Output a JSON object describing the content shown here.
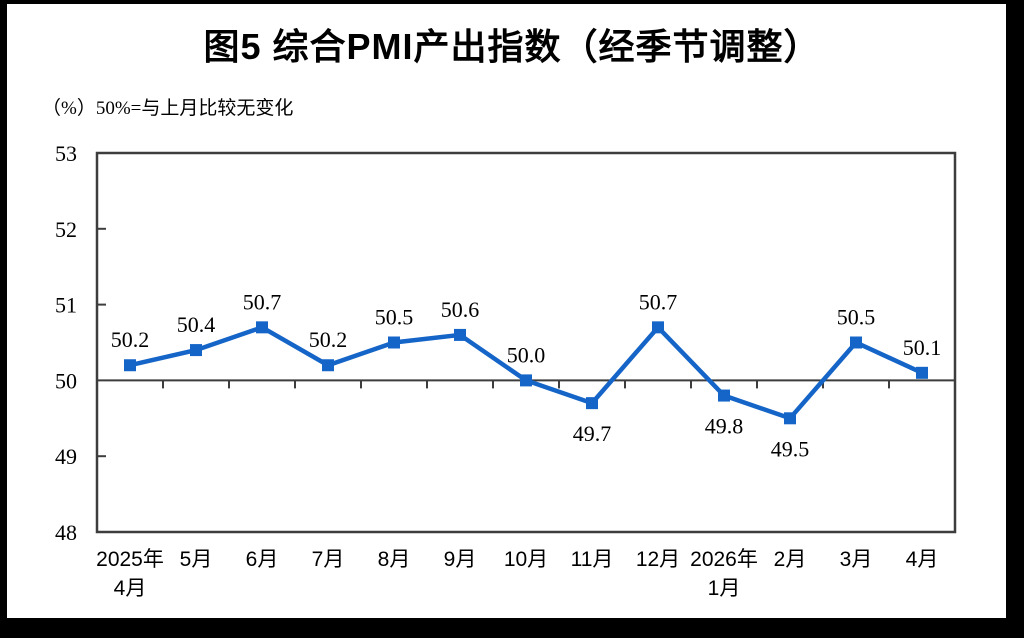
{
  "chart_data": {
    "type": "line",
    "title": "图5 综合PMI产出指数（经季节调整）",
    "unit_note": "（%）50%=与上月比较无变化",
    "categories": [
      [
        "2025年",
        "4月"
      ],
      [
        "5月"
      ],
      [
        "6月"
      ],
      [
        "7月"
      ],
      [
        "8月"
      ],
      [
        "9月"
      ],
      [
        "10月"
      ],
      [
        "11月"
      ],
      [
        "12月"
      ],
      [
        "2026年",
        "1月"
      ],
      [
        "2月"
      ],
      [
        "3月"
      ],
      [
        "4月"
      ]
    ],
    "series": [
      {
        "name": "综合PMI产出指数",
        "values": [
          50.2,
          50.4,
          50.7,
          50.2,
          50.5,
          50.6,
          50.0,
          49.7,
          50.7,
          49.8,
          49.5,
          50.5,
          50.1
        ]
      }
    ],
    "data_label_position": [
      "above",
      "above",
      "above",
      "above",
      "above",
      "above",
      "above",
      "below",
      "above",
      "below",
      "below",
      "above",
      "above"
    ],
    "ylim": [
      48,
      53
    ],
    "ytick_step": 1,
    "yticks": [
      48,
      49,
      50,
      51,
      52,
      53
    ],
    "reference_line": 50,
    "grid": false,
    "legend_position": "none",
    "line_color": "#1565C8",
    "marker_color": "#1565C8",
    "marker": "square",
    "axis_color": "#3D3D3D",
    "text_color": "#000000"
  }
}
